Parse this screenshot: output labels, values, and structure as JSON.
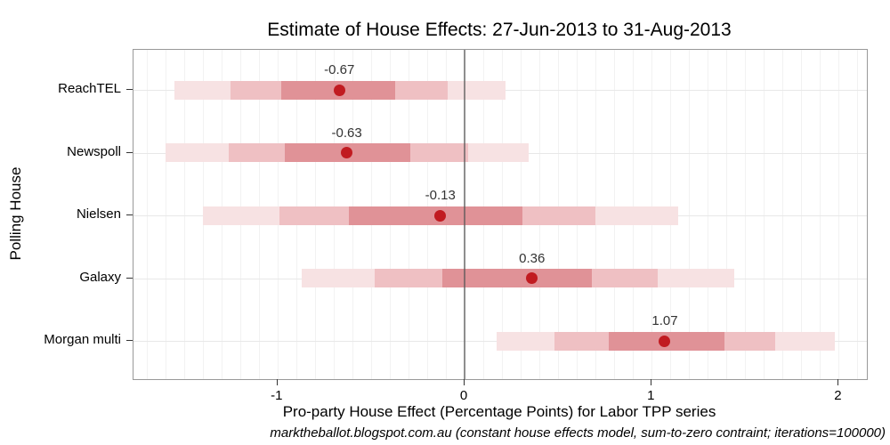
{
  "chart_data": {
    "type": "interval-dotplot",
    "title": "Estimate of House Effects: 27-Jun-2013 to 31-Aug-2013",
    "xlabel": "Pro-party House Effect (Percentage Points) for Labor TPP series",
    "ylabel": "Polling House",
    "caption": "marktheballot.blogspot.com.au (constant house effects model, sum-to-zero contraint; iterations=100000)",
    "xlim": [
      -1.77,
      2.15
    ],
    "x_ticks": [
      -1,
      0,
      1,
      2
    ],
    "x_tick_labels": [
      "-1",
      "0",
      "1",
      "2"
    ],
    "zero_line_at": 0,
    "grid_minor_step": 0.1,
    "grid_on": true,
    "legend": "none",
    "series": [
      {
        "house": "ReachTEL",
        "estimate": -0.67,
        "label": "-0.67",
        "inner": [
          -0.98,
          -0.37
        ],
        "middle": [
          -1.25,
          -0.09
        ],
        "outer": [
          -1.55,
          0.22
        ]
      },
      {
        "house": "Newspoll",
        "estimate": -0.63,
        "label": "-0.63",
        "inner": [
          -0.96,
          -0.29
        ],
        "middle": [
          -1.26,
          0.02
        ],
        "outer": [
          -1.6,
          0.34
        ]
      },
      {
        "house": "Nielsen",
        "estimate": -0.13,
        "label": "-0.13",
        "inner": [
          -0.62,
          0.31
        ],
        "middle": [
          -0.99,
          0.7
        ],
        "outer": [
          -1.4,
          1.14
        ]
      },
      {
        "house": "Galaxy",
        "estimate": 0.36,
        "label": "0.36",
        "inner": [
          -0.12,
          0.68
        ],
        "middle": [
          -0.48,
          1.03
        ],
        "outer": [
          -0.87,
          1.44
        ]
      },
      {
        "house": "Morgan multi",
        "estimate": 1.07,
        "label": "1.07",
        "inner": [
          0.77,
          1.39
        ],
        "middle": [
          0.48,
          1.66
        ],
        "outer": [
          0.17,
          1.98
        ]
      }
    ],
    "colors": {
      "outer_band": "#F7E2E3",
      "middle_band": "#EFC0C3",
      "inner_band": "#E09297",
      "dot": "#C11B21",
      "grid_vertical": "#F2F2F2",
      "grid_horizontal": "#E8E8E8",
      "zero_line": "rgba(85,85,85,0.65)",
      "panel_border": "#999999",
      "tick": "#333333",
      "estimate_label_text": "#333333",
      "text": "#000000"
    }
  }
}
